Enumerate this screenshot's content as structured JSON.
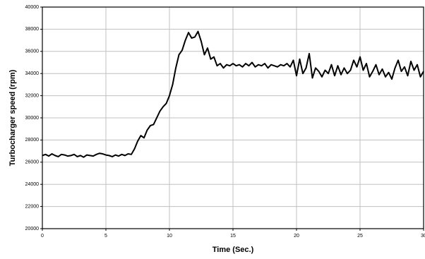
{
  "chart_data": {
    "type": "line",
    "xlabel": "Time (Sec.)",
    "ylabel": "Turbocharger speed (rpm)",
    "xlim": [
      0,
      30
    ],
    "xticks": [
      0,
      5,
      10,
      15,
      20,
      25,
      30
    ],
    "ylim": [
      20000,
      40000
    ],
    "yticks": [
      20000,
      22000,
      24000,
      26000,
      28000,
      30000,
      32000,
      34000,
      36000,
      38000,
      40000
    ],
    "grid": true,
    "series": [
      {
        "color": "#000000",
        "x": [
          0,
          0.25,
          0.5,
          0.75,
          1,
          1.25,
          1.5,
          1.75,
          2,
          2.25,
          2.5,
          2.75,
          3,
          3.25,
          3.5,
          3.75,
          4,
          4.25,
          4.5,
          4.75,
          5,
          5.25,
          5.5,
          5.75,
          6,
          6.25,
          6.5,
          6.75,
          7,
          7.25,
          7.5,
          7.75,
          8,
          8.25,
          8.5,
          8.75,
          9,
          9.25,
          9.5,
          9.75,
          10,
          10.25,
          10.5,
          10.75,
          11,
          11.25,
          11.5,
          11.75,
          12,
          12.25,
          12.5,
          12.75,
          13,
          13.25,
          13.5,
          13.75,
          14,
          14.25,
          14.5,
          14.75,
          15,
          15.25,
          15.5,
          15.75,
          16,
          16.25,
          16.5,
          16.75,
          17,
          17.25,
          17.5,
          17.75,
          18,
          18.25,
          18.5,
          18.75,
          19,
          19.25,
          19.5,
          19.75,
          20,
          20.25,
          20.5,
          20.75,
          21,
          21.25,
          21.5,
          21.75,
          22,
          22.25,
          22.5,
          22.75,
          23,
          23.25,
          23.5,
          23.75,
          24,
          24.25,
          24.5,
          24.75,
          25,
          25.25,
          25.5,
          25.75,
          26,
          26.25,
          26.5,
          26.75,
          27,
          27.25,
          27.5,
          27.75,
          28,
          28.25,
          28.5,
          28.75,
          29,
          29.25,
          29.5,
          29.75,
          30
        ],
        "values": [
          26600,
          26700,
          26550,
          26750,
          26600,
          26500,
          26700,
          26650,
          26550,
          26600,
          26700,
          26500,
          26600,
          26450,
          26650,
          26600,
          26550,
          26700,
          26800,
          26750,
          26650,
          26600,
          26500,
          26650,
          26550,
          26700,
          26600,
          26750,
          26700,
          27200,
          27900,
          28400,
          28200,
          28900,
          29300,
          29400,
          30000,
          30600,
          31000,
          31300,
          32000,
          33000,
          34500,
          35700,
          36100,
          37000,
          37700,
          37200,
          37300,
          37800,
          36900,
          35700,
          36300,
          35300,
          35500,
          34700,
          34900,
          34500,
          34800,
          34700,
          34900,
          34700,
          34800,
          34600,
          34900,
          34700,
          35000,
          34600,
          34800,
          34700,
          34900,
          34500,
          34800,
          34700,
          34600,
          34800,
          34700,
          34900,
          34600,
          35200,
          33800,
          35300,
          34000,
          34500,
          35800,
          33600,
          34500,
          34200,
          33700,
          34300,
          34000,
          34800,
          33800,
          34700,
          33900,
          34500,
          34000,
          34300,
          35200,
          34600,
          35500,
          34300,
          34900,
          33700,
          34200,
          34800,
          33900,
          34400,
          33700,
          34100,
          33500,
          34500,
          35200,
          34200,
          34600,
          33800,
          35100,
          34300,
          34800,
          33700,
          34200
        ]
      }
    ]
  }
}
